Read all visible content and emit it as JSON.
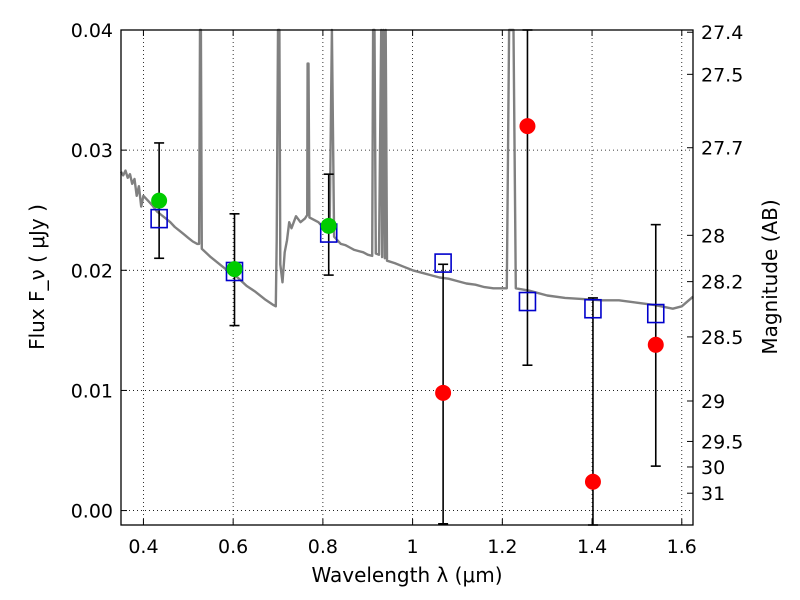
{
  "chart_data": {
    "type": "scatter",
    "xlabel": "Wavelength  λ (μm)",
    "ylabel": "Flux  F_ν  ( μJy )",
    "y2label": "Magnitude (AB)",
    "xlim": [
      0.35,
      1.625
    ],
    "ylim": [
      -0.0012,
      0.04
    ],
    "grid": true,
    "x_ticks": [
      {
        "value": 0.4,
        "label": "0.4"
      },
      {
        "value": 0.6,
        "label": "0.6"
      },
      {
        "value": 0.8,
        "label": "0.8"
      },
      {
        "value": 1.0,
        "label": "1"
      },
      {
        "value": 1.2,
        "label": "1.2"
      },
      {
        "value": 1.4,
        "label": "1.4"
      },
      {
        "value": 1.6,
        "label": "1.6"
      }
    ],
    "y_ticks": [
      {
        "value": 0.0,
        "label": "0.00"
      },
      {
        "value": 0.01,
        "label": "0.01"
      },
      {
        "value": 0.02,
        "label": "0.02"
      },
      {
        "value": 0.03,
        "label": "0.03"
      },
      {
        "value": 0.04,
        "label": "0.04"
      }
    ],
    "y2_ticks": [
      {
        "value": 27.4,
        "label": "27.4"
      },
      {
        "value": 27.5,
        "label": "27.5"
      },
      {
        "value": 27.7,
        "label": "27.7"
      },
      {
        "value": 28,
        "label": "28"
      },
      {
        "value": 28.2,
        "label": "28.2"
      },
      {
        "value": 28.5,
        "label": "28.5"
      },
      {
        "value": 29,
        "label": "29"
      },
      {
        "value": 29.5,
        "label": "29.5"
      },
      {
        "value": 30,
        "label": "30"
      },
      {
        "value": 31,
        "label": "31"
      }
    ],
    "model_spectrum": {
      "color": "#808080",
      "points": [
        [
          0.35,
          0.0282
        ],
        [
          0.355,
          0.0279
        ],
        [
          0.36,
          0.0283
        ],
        [
          0.365,
          0.0277
        ],
        [
          0.37,
          0.028
        ],
        [
          0.375,
          0.0272
        ],
        [
          0.38,
          0.0276
        ],
        [
          0.385,
          0.0262
        ],
        [
          0.39,
          0.027
        ],
        [
          0.395,
          0.0253
        ],
        [
          0.4,
          0.0262
        ],
        [
          0.41,
          0.0258
        ],
        [
          0.42,
          0.0254
        ],
        [
          0.43,
          0.0249
        ],
        [
          0.44,
          0.0246
        ],
        [
          0.45,
          0.0243
        ],
        [
          0.46,
          0.024
        ],
        [
          0.47,
          0.0236
        ],
        [
          0.48,
          0.0233
        ],
        [
          0.49,
          0.023
        ],
        [
          0.5,
          0.0227
        ],
        [
          0.51,
          0.0224
        ],
        [
          0.52,
          0.0222
        ],
        [
          0.524,
          0.0222
        ],
        [
          0.526,
          0.04
        ],
        [
          0.528,
          0.04
        ],
        [
          0.53,
          0.0218
        ],
        [
          0.55,
          0.0211
        ],
        [
          0.57,
          0.0205
        ],
        [
          0.59,
          0.0199
        ],
        [
          0.61,
          0.0194
        ],
        [
          0.63,
          0.0187
        ],
        [
          0.65,
          0.0182
        ],
        [
          0.67,
          0.0176
        ],
        [
          0.69,
          0.0171
        ],
        [
          0.695,
          0.017
        ],
        [
          0.697,
          0.0225
        ],
        [
          0.7,
          0.04
        ],
        [
          0.703,
          0.04
        ],
        [
          0.705,
          0.0205
        ],
        [
          0.71,
          0.019
        ],
        [
          0.715,
          0.0215
        ],
        [
          0.72,
          0.0225
        ],
        [
          0.725,
          0.024
        ],
        [
          0.73,
          0.0235
        ],
        [
          0.74,
          0.0245
        ],
        [
          0.75,
          0.024
        ],
        [
          0.76,
          0.0243
        ],
        [
          0.765,
          0.0246
        ],
        [
          0.766,
          0.0372
        ],
        [
          0.768,
          0.0372
        ],
        [
          0.77,
          0.0244
        ],
        [
          0.78,
          0.0242
        ],
        [
          0.79,
          0.024
        ],
        [
          0.8,
          0.0236
        ],
        [
          0.805,
          0.0232
        ],
        [
          0.81,
          0.0236
        ],
        [
          0.815,
          0.0232
        ],
        [
          0.82,
          0.04
        ],
        [
          0.825,
          0.0228
        ],
        [
          0.83,
          0.0226
        ],
        [
          0.84,
          0.0222
        ],
        [
          0.85,
          0.0221
        ],
        [
          0.86,
          0.0219
        ],
        [
          0.87,
          0.0217
        ],
        [
          0.88,
          0.0216
        ],
        [
          0.89,
          0.0215
        ],
        [
          0.9,
          0.0213
        ],
        [
          0.91,
          0.0212
        ],
        [
          0.912,
          0.04
        ],
        [
          0.915,
          0.04
        ],
        [
          0.918,
          0.0214
        ],
        [
          0.925,
          0.0213
        ],
        [
          0.93,
          0.04
        ],
        [
          0.932,
          0.0211
        ],
        [
          0.935,
          0.04
        ],
        [
          0.938,
          0.021
        ],
        [
          0.94,
          0.04
        ],
        [
          0.943,
          0.0208
        ],
        [
          0.96,
          0.0206
        ],
        [
          0.98,
          0.0203
        ],
        [
          1.0,
          0.02
        ],
        [
          1.02,
          0.0198
        ],
        [
          1.04,
          0.0196
        ],
        [
          1.06,
          0.0194
        ],
        [
          1.08,
          0.0193
        ],
        [
          1.1,
          0.0191
        ],
        [
          1.12,
          0.0189
        ],
        [
          1.14,
          0.0188
        ],
        [
          1.16,
          0.0186
        ],
        [
          1.18,
          0.0185
        ],
        [
          1.21,
          0.0185
        ],
        [
          1.215,
          0.04
        ],
        [
          1.225,
          0.04
        ],
        [
          1.23,
          0.0185
        ],
        [
          1.26,
          0.0183
        ],
        [
          1.3,
          0.0179
        ],
        [
          1.34,
          0.0177
        ],
        [
          1.38,
          0.0176
        ],
        [
          1.42,
          0.0175
        ],
        [
          1.46,
          0.0175
        ],
        [
          1.5,
          0.0173
        ],
        [
          1.54,
          0.0171
        ],
        [
          1.58,
          0.0168
        ],
        [
          1.6,
          0.017
        ],
        [
          1.625,
          0.0178
        ]
      ]
    },
    "series": [
      {
        "marker": "open-square",
        "color": "#0000cc",
        "points": [
          {
            "x": 0.435,
            "y": 0.0243
          },
          {
            "x": 0.603,
            "y": 0.0199
          },
          {
            "x": 0.813,
            "y": 0.0231
          },
          {
            "x": 1.068,
            "y": 0.0206
          },
          {
            "x": 1.256,
            "y": 0.0174
          },
          {
            "x": 1.402,
            "y": 0.0168
          },
          {
            "x": 1.542,
            "y": 0.0164
          }
        ]
      },
      {
        "marker": "filled-circle",
        "color": "#00cc00",
        "points": [
          {
            "x": 0.435,
            "y": 0.0258,
            "yerr_low": 0.021,
            "yerr_high": 0.0306
          },
          {
            "x": 0.603,
            "y": 0.0201,
            "yerr_low": 0.0154,
            "yerr_high": 0.0247
          },
          {
            "x": 0.813,
            "y": 0.0237,
            "yerr_low": 0.0196,
            "yerr_high": 0.028
          }
        ]
      },
      {
        "marker": "filled-circle",
        "color": "#ff0000",
        "points": [
          {
            "x": 1.068,
            "y": 0.0098,
            "yerr_low": -0.0011,
            "yerr_high": 0.0205
          },
          {
            "x": 1.256,
            "y": 0.032,
            "yerr_low": 0.0121,
            "yerr_high": 0.04
          },
          {
            "x": 1.402,
            "y": 0.0024,
            "yerr_low": -0.0012,
            "yerr_high": 0.0177
          },
          {
            "x": 1.542,
            "y": 0.0138,
            "yerr_low": 0.0037,
            "yerr_high": 0.0238
          }
        ]
      }
    ]
  }
}
